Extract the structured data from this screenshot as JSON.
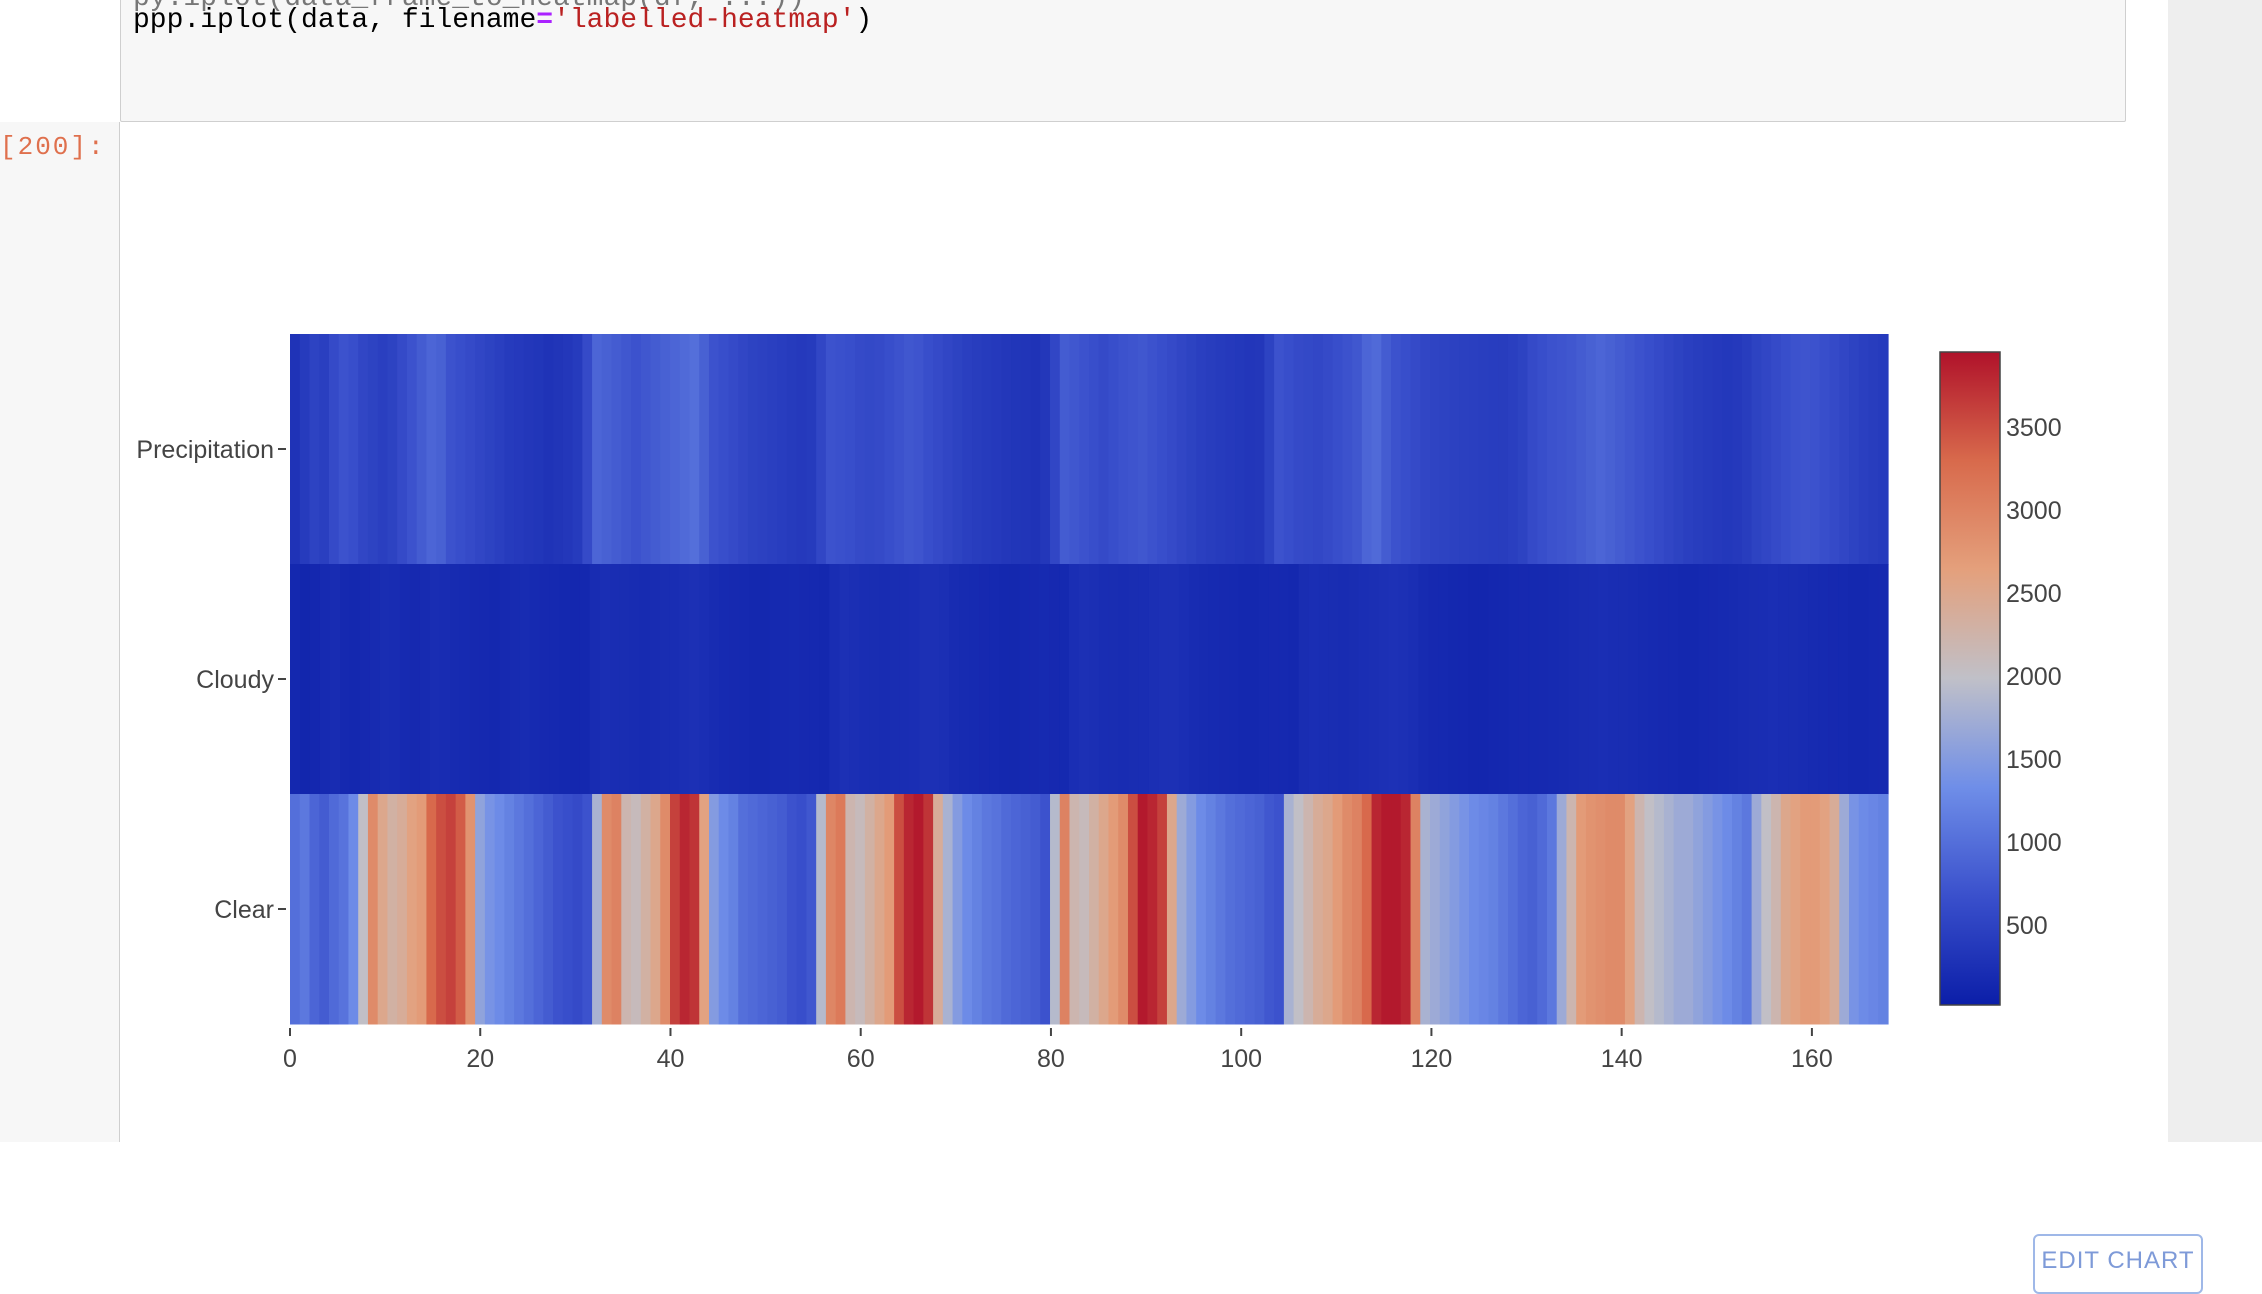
{
  "notebook": {
    "prompt_label": "[200]:",
    "code_line_prev": "py.iplot(data_frame_to_heatmap(df, ...))",
    "code_parts": {
      "before": "ppp.iplot(data, filename",
      "operator": "=",
      "string": "'labelled-heatmap'",
      "after": ")"
    },
    "edit_chart_label": "EDIT CHART"
  },
  "chart_data": {
    "type": "heatmap",
    "y_categories": [
      "Clear",
      "Cloudy",
      "Precipitation"
    ],
    "x_ticks": [
      0,
      20,
      40,
      60,
      80,
      100,
      120,
      140,
      160
    ],
    "x_range": [
      0,
      168
    ],
    "colorbar": {
      "ticks": [
        500,
        1000,
        1500,
        2000,
        2500,
        3000,
        3500
      ],
      "range": [
        20,
        3950
      ],
      "colorscale": [
        "#0b1ea8",
        "#3a50cc",
        "#6f8ee8",
        "#c0c0c8",
        "#e4a07c",
        "#d86a4c",
        "#b0122a"
      ]
    },
    "rows": {
      "Clear": [
        1000,
        1100,
        900,
        800,
        950,
        1050,
        1300,
        2000,
        2900,
        2500,
        2300,
        2400,
        2600,
        2700,
        3300,
        3500,
        3600,
        3400,
        2800,
        1600,
        1400,
        1300,
        1200,
        1100,
        1000,
        900,
        800,
        700,
        650,
        600,
        700,
        1800,
        2900,
        3000,
        2200,
        2100,
        2300,
        2500,
        2900,
        3600,
        3800,
        3700,
        2600,
        1500,
        1300,
        1200,
        1000,
        950,
        900,
        850,
        800,
        700,
        650,
        750,
        1900,
        2950,
        3100,
        2200,
        2100,
        2300,
        2500,
        2700,
        3500,
        3800,
        3900,
        3700,
        2400,
        1800,
        1500,
        1300,
        1200,
        1100,
        1050,
        950,
        900,
        850,
        800,
        700,
        1900,
        3000,
        2200,
        2100,
        2300,
        2500,
        2700,
        2900,
        3500,
        3900,
        3800,
        3600,
        2500,
        1700,
        1500,
        1300,
        1200,
        1100,
        1000,
        950,
        900,
        850,
        750,
        700,
        1800,
        2000,
        2200,
        2400,
        2500,
        2700,
        2900,
        3000,
        3300,
        3800,
        3900,
        3900,
        3800,
        3000,
        1800,
        1700,
        1600,
        1500,
        1400,
        1300,
        1250,
        1200,
        1100,
        1000,
        900,
        850,
        950,
        1100,
        1700,
        2200,
        2700,
        2800,
        2850,
        2900,
        2900,
        2600,
        2200,
        2000,
        1900,
        1800,
        1700,
        1700,
        1600,
        1500,
        1400,
        1300,
        1200,
        1100,
        1700,
        2000,
        2200,
        2500,
        2600,
        2700,
        2700,
        2600,
        2400,
        1700,
        1400,
        1300,
        1250,
        1200
      ],
      "Cloudy": [
        150,
        120,
        140,
        180,
        200,
        160,
        150,
        170,
        190,
        210,
        200,
        180,
        170,
        190,
        220,
        200,
        190,
        180,
        170,
        160,
        150,
        170,
        190,
        200,
        180,
        170,
        160,
        150,
        140,
        150,
        200,
        230,
        220,
        210,
        200,
        190,
        200,
        210,
        220,
        240,
        250,
        230,
        200,
        180,
        170,
        160,
        150,
        150,
        160,
        170,
        180,
        170,
        160,
        150,
        220,
        260,
        240,
        220,
        210,
        200,
        210,
        220,
        230,
        250,
        260,
        240,
        200,
        190,
        180,
        170,
        160,
        150,
        150,
        160,
        170,
        180,
        170,
        160,
        230,
        260,
        240,
        220,
        210,
        200,
        210,
        220,
        240,
        260,
        250,
        230,
        200,
        190,
        180,
        170,
        160,
        150,
        150,
        160,
        170,
        160,
        150,
        210,
        230,
        220,
        210,
        200,
        210,
        230,
        240,
        260,
        270,
        260,
        230,
        190,
        170,
        160,
        150,
        140,
        130,
        130,
        140,
        150,
        160,
        170,
        160,
        170,
        180,
        190,
        200,
        210,
        220,
        230,
        220,
        210,
        200,
        190,
        180,
        170,
        160,
        150,
        150,
        160,
        170,
        180,
        190,
        200,
        210,
        220,
        230,
        220,
        210,
        200,
        190,
        180,
        170,
        160,
        150,
        150,
        160,
        170
      ],
      "Precipitation": [
        300,
        400,
        500,
        450,
        600,
        700,
        650,
        550,
        500,
        450,
        500,
        600,
        700,
        800,
        900,
        850,
        700,
        650,
        600,
        550,
        500,
        450,
        400,
        380,
        350,
        330,
        300,
        320,
        350,
        400,
        600,
        900,
        850,
        800,
        750,
        700,
        750,
        800,
        850,
        900,
        950,
        1000,
        850,
        700,
        650,
        600,
        550,
        500,
        480,
        450,
        430,
        400,
        380,
        400,
        550,
        700,
        680,
        650,
        600,
        580,
        600,
        650,
        700,
        750,
        720,
        650,
        600,
        550,
        500,
        450,
        420,
        400,
        380,
        350,
        330,
        320,
        300,
        350,
        550,
        800,
        750,
        700,
        650,
        600,
        650,
        700,
        720,
        750,
        700,
        650,
        600,
        550,
        500,
        450,
        420,
        400,
        380,
        360,
        340,
        350,
        500,
        700,
        650,
        600,
        580,
        560,
        600,
        650,
        700,
        750,
        900,
        950,
        800,
        700,
        650,
        600,
        550,
        520,
        500,
        480,
        460,
        450,
        440,
        430,
        420,
        450,
        500,
        600,
        650,
        700,
        720,
        750,
        800,
        850,
        900,
        850,
        800,
        750,
        700,
        650,
        600,
        550,
        500,
        450,
        420,
        400,
        380,
        360,
        380,
        420,
        500,
        550,
        600,
        650,
        700,
        720,
        700,
        650,
        600,
        550,
        500,
        450,
        420,
        400
      ]
    }
  }
}
